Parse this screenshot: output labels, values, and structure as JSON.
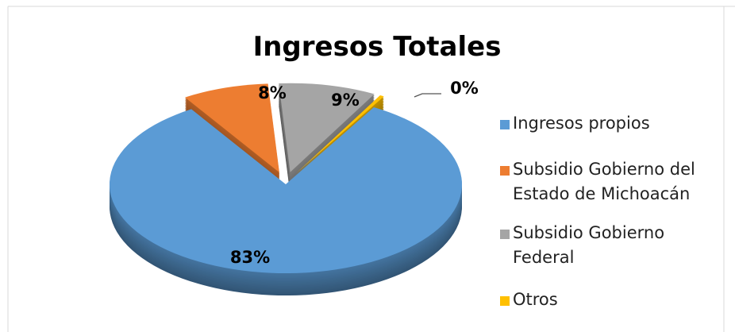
{
  "chart_data": {
    "type": "pie",
    "title": "Ingresos Totales",
    "categories": [
      "Ingresos propios",
      "Subsidio Gobierno del Estado de Michoacán",
      "Subsidio Gobierno Federal",
      "Otros"
    ],
    "values": [
      83,
      8,
      9,
      0.4
    ],
    "value_labels": [
      "83%",
      "8%",
      "9%",
      "0%"
    ],
    "colors": [
      "#5b9bd5",
      "#ed7d31",
      "#a5a5a5",
      "#ffc000"
    ],
    "legend": "right"
  }
}
